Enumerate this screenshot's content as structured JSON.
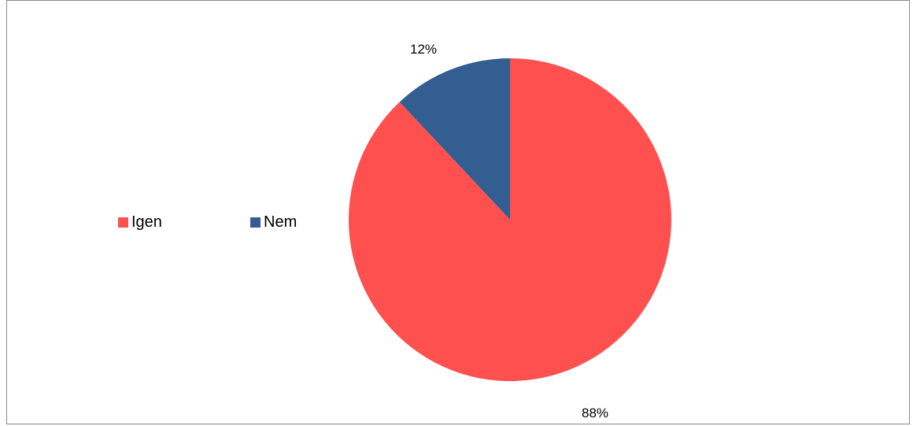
{
  "chart_data": {
    "type": "pie",
    "title": "",
    "series": [
      {
        "categories": [
          "Igen",
          "Nem"
        ],
        "values": [
          88,
          12
        ],
        "labels": [
          "88%",
          "12%"
        ],
        "colors": [
          "#FF5050",
          "#335E91"
        ]
      }
    ],
    "start_angle_deg": 0,
    "direction": "clockwise",
    "legend": {
      "placement": "left",
      "items": [
        {
          "label": "Igen",
          "color": "#FF5050"
        },
        {
          "label": "Nem",
          "color": "#335E91"
        }
      ]
    }
  }
}
